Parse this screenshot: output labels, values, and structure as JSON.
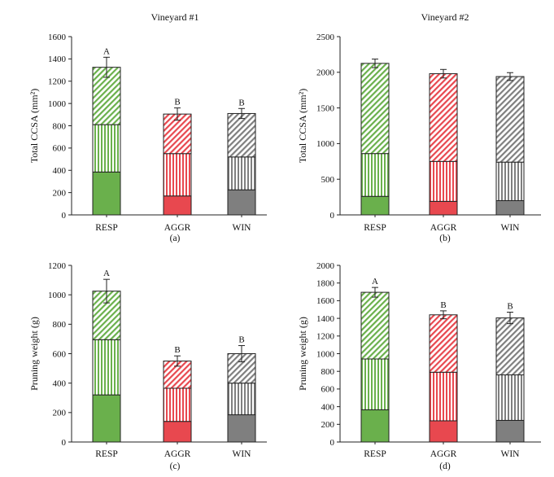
{
  "figure": {
    "colors": {
      "RESP": "#6ab04c",
      "AGGR": "#e8484f",
      "WIN": "#7f7f7f"
    },
    "segment_patterns": [
      "solid",
      "vertical-stripes",
      "diagonal-stripes"
    ]
  },
  "chart_data": [
    {
      "type": "bar",
      "stacked": true,
      "title": "Vineyard #1",
      "panel_label": "(a)",
      "ylabel": "Total CCSA (mm²)",
      "xlabel": "",
      "categories": [
        "RESP",
        "AGGR",
        "WIN"
      ],
      "ylim": [
        0,
        1600
      ],
      "yticks": [
        0,
        200,
        400,
        600,
        800,
        1000,
        1200,
        1400,
        1600
      ],
      "segments": [
        {
          "values": [
            385,
            170,
            225
          ]
        },
        {
          "values": [
            425,
            380,
            295
          ]
        },
        {
          "values": [
            515,
            355,
            390
          ]
        }
      ],
      "totals": [
        1325,
        905,
        910
      ],
      "errors": [
        90,
        55,
        45
      ],
      "significance": [
        "A",
        "B",
        "B"
      ],
      "grid": false
    },
    {
      "type": "bar",
      "stacked": true,
      "title": "Vineyard #2",
      "panel_label": "(b)",
      "ylabel": "Total CCSA (mm²)",
      "xlabel": "",
      "categories": [
        "RESP",
        "AGGR",
        "WIN"
      ],
      "ylim": [
        0,
        2500
      ],
      "yticks": [
        0,
        500,
        1000,
        1500,
        2000,
        2500
      ],
      "segments": [
        {
          "values": [
            260,
            190,
            200
          ]
        },
        {
          "values": [
            600,
            560,
            540
          ]
        },
        {
          "values": [
            1265,
            1230,
            1200
          ]
        }
      ],
      "totals": [
        2125,
        1980,
        1940
      ],
      "errors": [
        60,
        60,
        55
      ],
      "significance": [
        "",
        "",
        ""
      ],
      "grid": false
    },
    {
      "type": "bar",
      "stacked": true,
      "title": "",
      "panel_label": "(c)",
      "ylabel": "Pruning weight (g)",
      "xlabel": "",
      "categories": [
        "RESP",
        "AGGR",
        "WIN"
      ],
      "ylim": [
        0,
        1200
      ],
      "yticks": [
        0,
        200,
        400,
        600,
        800,
        1000,
        1200
      ],
      "segments": [
        {
          "values": [
            320,
            140,
            185
          ]
        },
        {
          "values": [
            375,
            225,
            215
          ]
        },
        {
          "values": [
            330,
            185,
            200
          ]
        }
      ],
      "totals": [
        1025,
        550,
        600
      ],
      "errors": [
        80,
        35,
        55
      ],
      "significance": [
        "A",
        "B",
        "B"
      ],
      "grid": false
    },
    {
      "type": "bar",
      "stacked": true,
      "title": "",
      "panel_label": "(d)",
      "ylabel": "Pruning weight (g)",
      "xlabel": "",
      "categories": [
        "RESP",
        "AGGR",
        "WIN"
      ],
      "ylim": [
        0,
        2000
      ],
      "yticks": [
        0,
        200,
        400,
        600,
        800,
        1000,
        1200,
        1400,
        1600,
        1800,
        2000
      ],
      "segments": [
        {
          "values": [
            365,
            240,
            245
          ]
        },
        {
          "values": [
            575,
            550,
            515
          ]
        },
        {
          "values": [
            755,
            650,
            645
          ]
        }
      ],
      "totals": [
        1695,
        1440,
        1405
      ],
      "errors": [
        55,
        45,
        65
      ],
      "significance": [
        "A",
        "B",
        "B"
      ],
      "grid": false
    }
  ]
}
